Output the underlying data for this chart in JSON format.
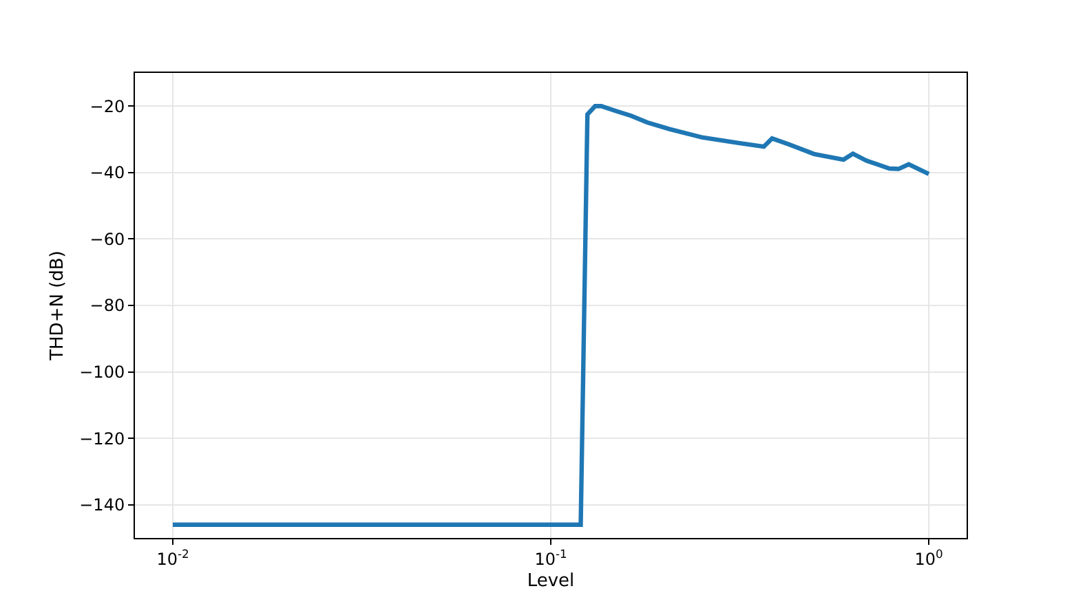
{
  "chart_data": {
    "type": "line",
    "xlabel": "Level",
    "ylabel": "THD+N (dB)",
    "log": "x",
    "grid": true,
    "xlim": [
      0.00794,
      1.259
    ],
    "xticks": [
      {
        "value": 0.01,
        "label": "10$^{-2}$"
      },
      {
        "value": 0.1,
        "label": "10$^{-1}$"
      },
      {
        "value": 1,
        "label": "10$^{0}$"
      }
    ],
    "ylim": [
      -150,
      -10
    ],
    "yticks": [
      -20,
      -40,
      -60,
      -80,
      -100,
      -120,
      -140
    ],
    "x": [
      0.01,
      0.12,
      0.125,
      0.131,
      0.136,
      0.148,
      0.163,
      0.18,
      0.206,
      0.251,
      0.314,
      0.366,
      0.385,
      0.426,
      0.497,
      0.595,
      0.63,
      0.684,
      0.787,
      0.832,
      0.885,
      1.0
    ],
    "series": [
      {
        "color": "#1f77b4",
        "values": [
          -146,
          -146,
          -22.5,
          -20,
          -20,
          -21.4,
          -22.9,
          -24.9,
          -26.9,
          -29.4,
          -31.1,
          -32.2,
          -29.7,
          -31.5,
          -34.4,
          -36.1,
          -34.3,
          -36.4,
          -38.8,
          -38.9,
          -37.5,
          -40.4
        ]
      }
    ]
  }
}
